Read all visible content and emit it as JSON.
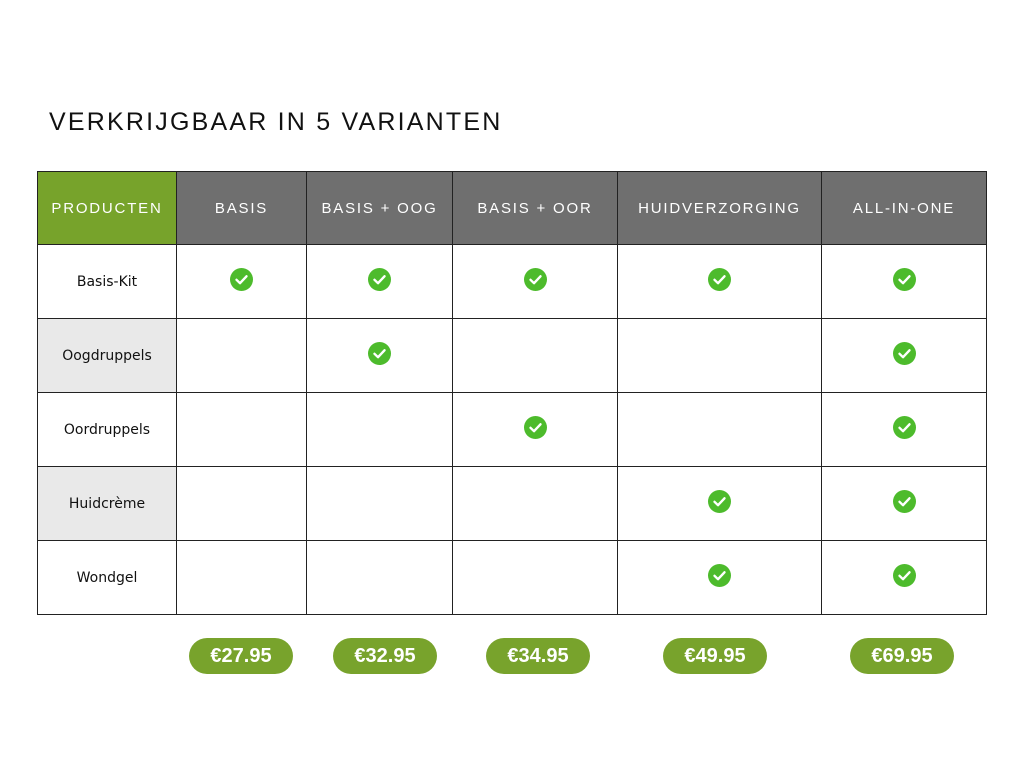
{
  "title": "VERKRIJGBAAR IN 5 VARIANTEN",
  "table": {
    "header": [
      "PRODUCTEN",
      "BASIS",
      "BASIS + OOG",
      "BASIS + OOR",
      "HUIDVERZORGING",
      "ALL-IN-ONE"
    ],
    "rows": [
      {
        "label": "Basis-Kit",
        "included": [
          true,
          true,
          true,
          true,
          true
        ]
      },
      {
        "label": "Oogdruppels",
        "included": [
          false,
          true,
          false,
          false,
          true
        ]
      },
      {
        "label": "Oordruppels",
        "included": [
          false,
          false,
          true,
          false,
          true
        ]
      },
      {
        "label": "Huidcrème",
        "included": [
          false,
          false,
          false,
          true,
          true
        ]
      },
      {
        "label": "Wondgel",
        "included": [
          false,
          false,
          false,
          true,
          true
        ]
      }
    ]
  },
  "prices": [
    "€27.95",
    "€32.95",
    "€34.95",
    "€49.95",
    "€69.95"
  ]
}
